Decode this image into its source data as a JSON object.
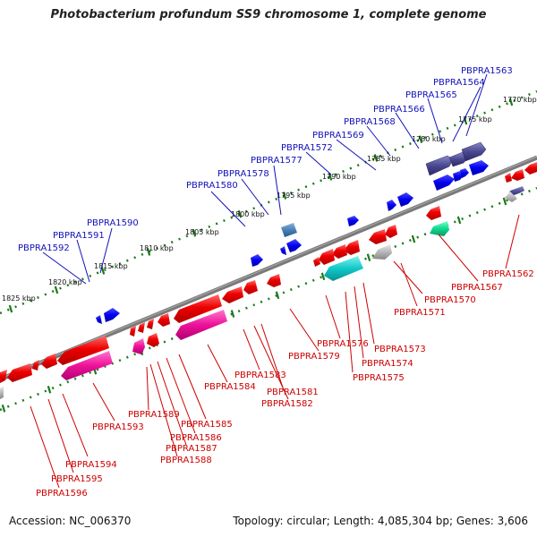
{
  "title": "Photobacterium profundum SS9 chromosome 1, complete genome",
  "footer": {
    "accession": "Accession: NC_006370",
    "summary": "Topology: circular; Length: 4,085,304 bp; Genes: 3,606"
  },
  "kbp_ticks": [
    "1770 kbp",
    "1775 kbp",
    "1780 kbp",
    "1785 kbp",
    "1790 kbp",
    "1795 kbp",
    "1800 kbp",
    "1805 kbp",
    "1810 kbp",
    "1815 kbp",
    "1820 kbp",
    "1825 kbp"
  ],
  "upper_labels": [
    "PBPRA1563",
    "PBPRA1564",
    "PBPRA1565",
    "PBPRA1566",
    "PBPRA1568",
    "PBPRA1569",
    "PBPRA1572",
    "PBPRA1577",
    "PBPRA1578",
    "PBPRA1580",
    "PBPRA1590",
    "PBPRA1591",
    "PBPRA1592"
  ],
  "lower_labels": [
    "PBPRA1562",
    "PBPRA1567",
    "PBPRA1570",
    "PBPRA1571",
    "PBPRA1573",
    "PBPRA1574",
    "PBPRA1575",
    "PBPRA1576",
    "PBPRA1579",
    "PBPRA1581",
    "PBPRA1582",
    "PBPRA1583",
    "PBPRA1584",
    "PBPRA1585",
    "PBPRA1586",
    "PBPRA1587",
    "PBPRA1588",
    "PBPRA1589",
    "PBPRA1593",
    "PBPRA1594",
    "PBPRA1595",
    "PBPRA1596"
  ],
  "colors": {
    "upper_label": "#1111bb",
    "lower_label": "#cc0000",
    "backbone": "#7a7a7a",
    "tick": "#1a7a1a"
  }
}
